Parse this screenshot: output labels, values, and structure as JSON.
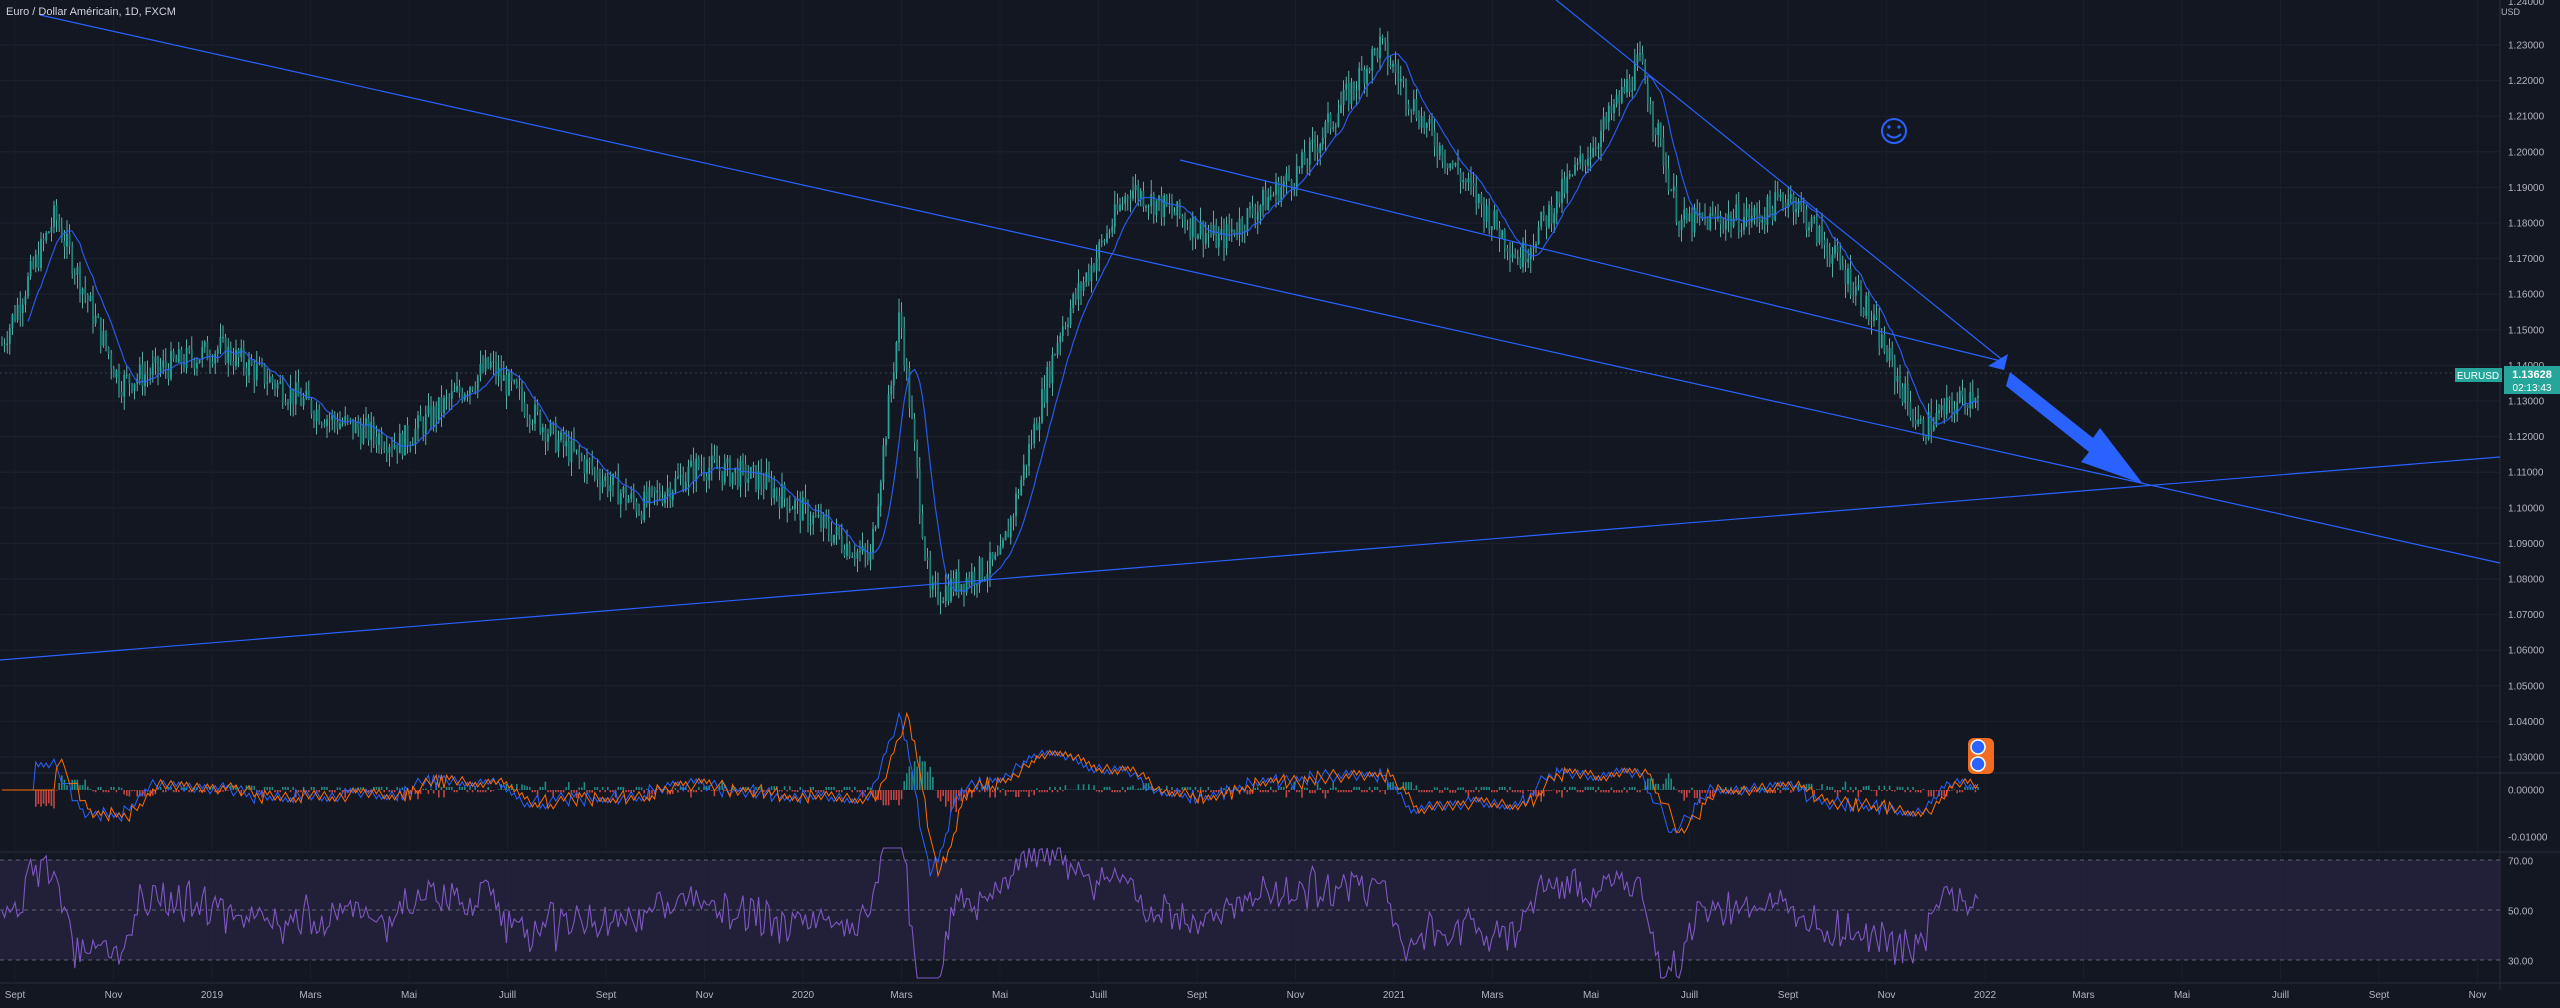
{
  "header": {
    "title": "Euro / Dollar Américain, 1D, FXCM"
  },
  "price_axis": {
    "unit": "USD",
    "top_partial_label": "1.24000",
    "ticks": [
      "1.23000",
      "1.22000",
      "1.21000",
      "1.20000",
      "1.19000",
      "1.18000",
      "1.17000",
      "1.16000",
      "1.15000",
      "1.14000",
      "1.13000",
      "1.12000",
      "1.11000",
      "1.10000",
      "1.09000",
      "1.08000",
      "1.07000",
      "1.06000",
      "1.05000",
      "1.04000",
      "1.03000"
    ]
  },
  "macd_axis": {
    "ticks": [
      "0.00000",
      "-0.01000"
    ]
  },
  "rsi_axis": {
    "ticks": [
      "70.00",
      "50.00",
      "30.00"
    ]
  },
  "time_axis": {
    "labels": [
      "Sept",
      "Nov",
      "2019",
      "Mars",
      "Mai",
      "Juill",
      "Sept",
      "Nov",
      "2020",
      "Mars",
      "Mai",
      "Juill",
      "Sept",
      "Nov",
      "2021",
      "Mars",
      "Mai",
      "Juill",
      "Sept",
      "Nov",
      "2022",
      "Mars",
      "Mai",
      "Juill",
      "Sept",
      "Nov"
    ]
  },
  "last_price": {
    "symbol": "EURUSD",
    "value": "1.13628",
    "countdown": "02:13:43"
  },
  "colors": {
    "background": "#131722",
    "candle": "#26a69a",
    "candle_wick": "#6fd3c6",
    "moving_average": "#2962ff",
    "trendline": "#2962ff",
    "arrow": "#2962ff",
    "macd_line": "#2962ff",
    "signal_line": "#ff6d00",
    "hist_pos": "#26a69a",
    "hist_neg": "#ef5350",
    "rsi_line": "#7e57c2",
    "rsi_band": "#2a2443",
    "price_tag": "#26a69a"
  },
  "chart_data": {
    "type": "line",
    "title": "Euro / Dollar Américain, 1D, FXCM",
    "y_unit": "USD",
    "ylim": [
      1.025,
      1.242
    ],
    "x": [
      "Sept 2018",
      "Nov 2018",
      "2019",
      "Mars 2019",
      "Mai 2019",
      "Juill 2019",
      "Sept 2019",
      "Nov 2019",
      "2020",
      "Mars 2020",
      "Mai 2020",
      "Juill 2020",
      "Sept 2020",
      "Nov 2020",
      "2021",
      "Mars 2021",
      "Mai 2021",
      "Juill 2021",
      "Sept 2021",
      "Nov 2021",
      "2022"
    ],
    "series": [
      {
        "values": [
          1.165,
          1.135,
          1.14,
          1.135,
          1.12,
          1.125,
          1.1,
          1.105,
          1.115,
          1.095,
          1.09,
          1.14,
          1.185,
          1.18,
          1.225,
          1.19,
          1.215,
          1.185,
          1.17,
          1.15,
          1.134
        ]
      }
    ],
    "indicators": {
      "macd": {
        "range": [
          -0.012,
          0.006
        ],
        "ticks": [
          0.0,
          -0.01
        ]
      },
      "rsi": {
        "range": [
          20,
          80
        ],
        "bands": [
          30,
          50,
          70
        ]
      }
    }
  }
}
